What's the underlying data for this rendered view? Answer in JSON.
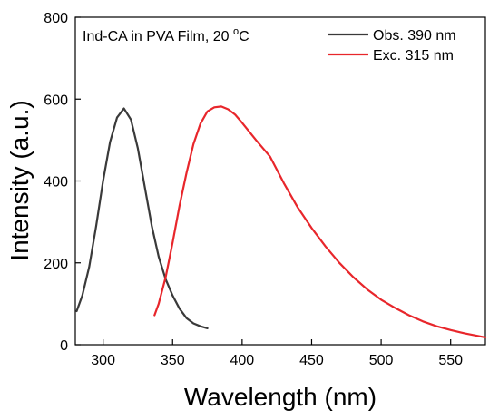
{
  "chart_data": {
    "type": "line",
    "title": "",
    "xlabel": "Wavelength (nm)",
    "ylabel": "Intensity (a.u.)",
    "xlim": [
      280,
      575
    ],
    "ylim": [
      0,
      800
    ],
    "x_ticks": [
      300,
      350,
      400,
      450,
      500,
      550
    ],
    "y_ticks": [
      0,
      200,
      400,
      600,
      800
    ],
    "grid": false,
    "legend_position": "top-right",
    "annotation": {
      "prefix": "Ind-CA in PVA Film, 20 ",
      "superscript": "o",
      "suffix": "C"
    },
    "series": [
      {
        "name": "Obs. 390 nm",
        "color": "#3a3a3a",
        "x": [
          281,
          285,
          290,
          295,
          300,
          305,
          310,
          315,
          320,
          325,
          330,
          335,
          340,
          345,
          350,
          355,
          360,
          365,
          370,
          375
        ],
        "y": [
          82,
          120,
          190,
          290,
          400,
          495,
          555,
          577,
          550,
          480,
          385,
          290,
          215,
          160,
          120,
          88,
          65,
          52,
          45,
          40
        ]
      },
      {
        "name": "Exc. 315 nm",
        "color": "#e8262b",
        "x": [
          337,
          340,
          345,
          350,
          355,
          360,
          365,
          370,
          375,
          380,
          385,
          390,
          395,
          400,
          410,
          420,
          430,
          440,
          450,
          460,
          470,
          480,
          490,
          500,
          510,
          520,
          530,
          540,
          550,
          560,
          575
        ],
        "y": [
          72,
          100,
          165,
          250,
          340,
          420,
          490,
          540,
          570,
          580,
          582,
          575,
          562,
          542,
          500,
          460,
          395,
          335,
          285,
          240,
          200,
          165,
          135,
          110,
          90,
          72,
          57,
          45,
          36,
          28,
          18
        ]
      }
    ]
  }
}
